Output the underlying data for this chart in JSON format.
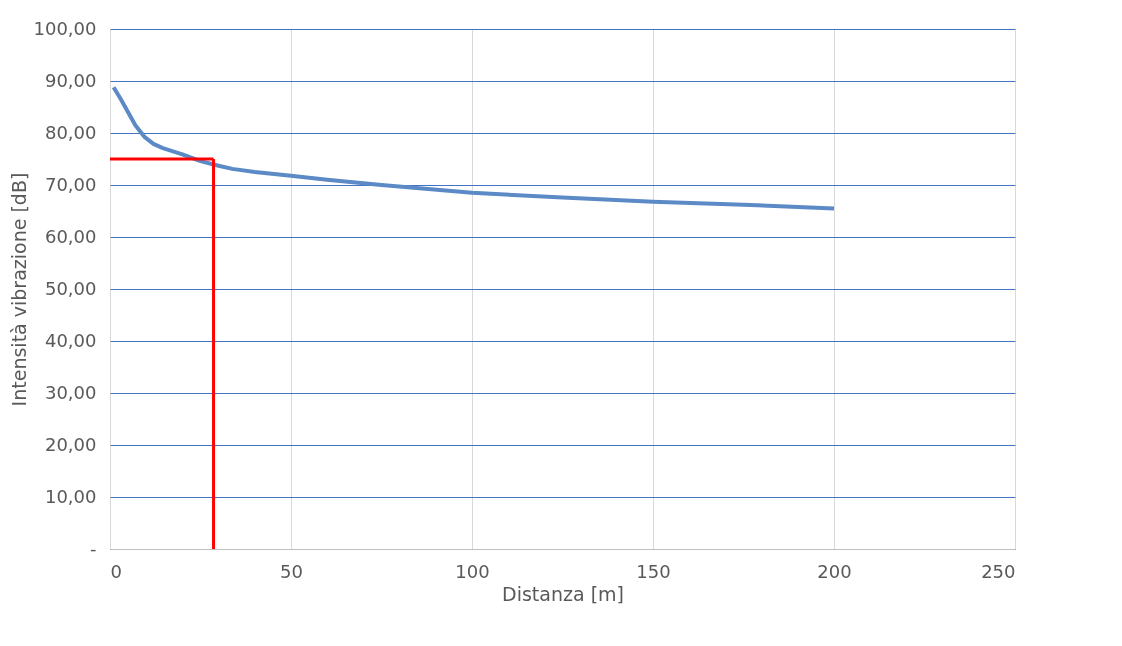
{
  "chart_data": {
    "type": "line",
    "xlabel": "Distanza [m]",
    "ylabel": "Intensità vibrazione [dB]",
    "x": [
      1,
      3,
      5,
      7,
      9.6,
      12,
      14.6,
      20,
      25,
      30,
      33.8,
      40,
      50,
      60,
      75,
      100,
      125,
      150,
      175,
      200
    ],
    "series": [
      {
        "color": "#5b8ac6",
        "values": [
          88.8,
          86.5,
          84,
          81.5,
          79.2,
          77.9,
          77.1,
          75.9,
          74.6,
          73.7,
          73.1,
          72.5,
          71.8,
          71.0,
          70.0,
          68.5,
          67.6,
          66.8,
          66.2,
          65.5
        ]
      }
    ],
    "xlim": [
      0,
      250
    ],
    "xticks": [
      0,
      50,
      100,
      150,
      200,
      250
    ],
    "ylim": [
      0,
      100
    ],
    "yticks": [
      {
        "value": 0,
        "label": "-"
      },
      {
        "value": 10,
        "label": "10,00"
      },
      {
        "value": 20,
        "label": "20,00"
      },
      {
        "value": 30,
        "label": "30,00"
      },
      {
        "value": 40,
        "label": "40,00"
      },
      {
        "value": 50,
        "label": "50,00"
      },
      {
        "value": 60,
        "label": "60,00"
      },
      {
        "value": 70,
        "label": "70,00"
      },
      {
        "value": 80,
        "label": "80,00"
      },
      {
        "value": 90,
        "label": "90,00"
      },
      {
        "value": 100,
        "label": "100,00"
      }
    ],
    "ref_lines": [
      {
        "axis": "y",
        "value": 75,
        "color": "#ff0000"
      },
      {
        "axis": "x",
        "value": 28.6,
        "color": "#ff0000"
      }
    ],
    "grid": true,
    "marker": "none",
    "line_style": "solid"
  }
}
